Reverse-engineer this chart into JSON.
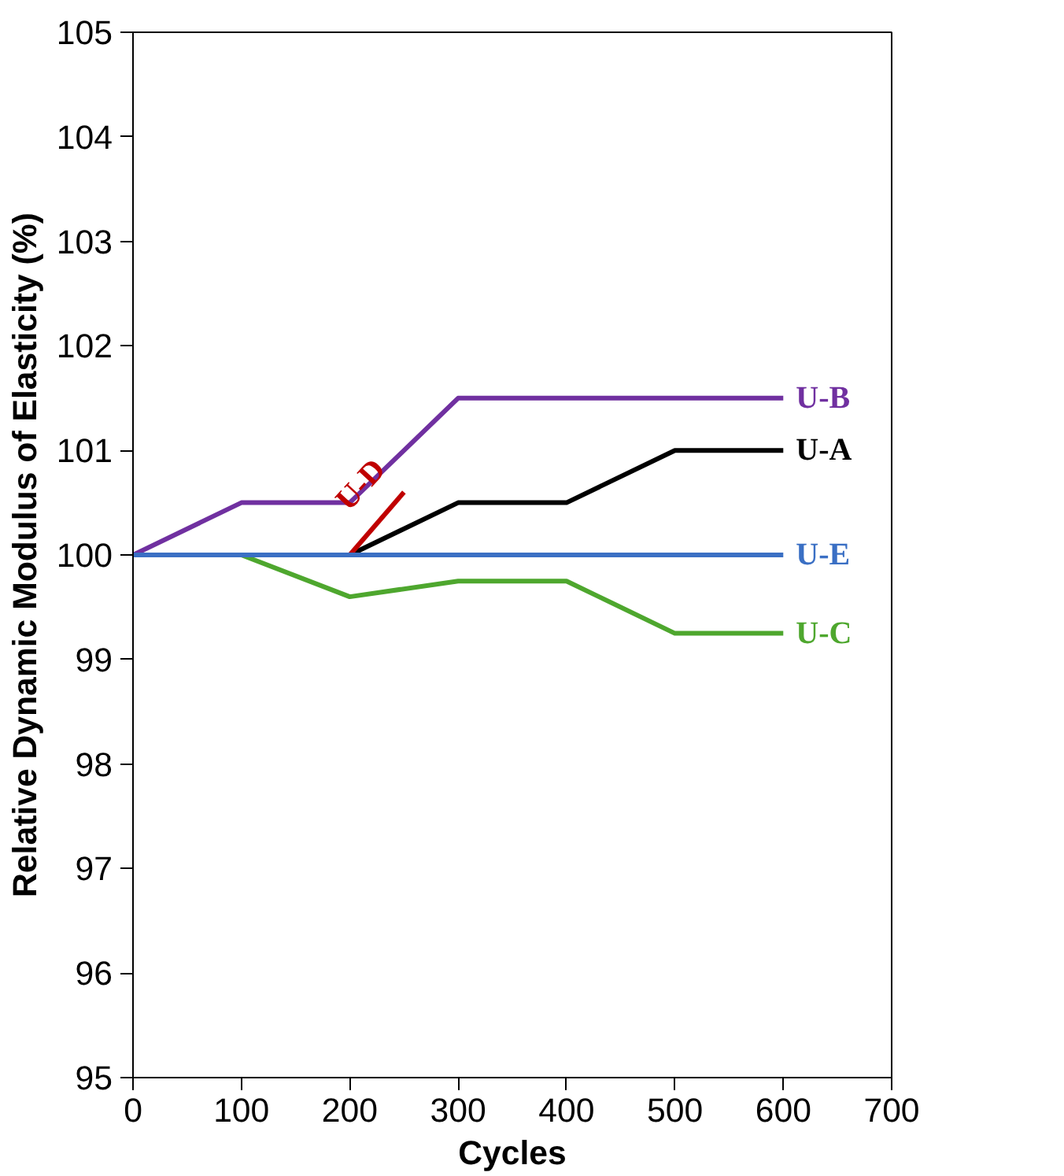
{
  "chart_data": {
    "type": "line",
    "xlabel": "Cycles",
    "ylabel": "Relative Dynamic Modulus of Elasticity (%)",
    "xlim": [
      0,
      700
    ],
    "xticks": [
      0,
      100,
      200,
      300,
      400,
      500,
      600,
      700
    ],
    "ylim": [
      95,
      105
    ],
    "yticks": [
      95,
      96,
      97,
      98,
      99,
      100,
      101,
      102,
      103,
      104,
      105
    ],
    "grid": false,
    "marker": "none",
    "line_style": "solid",
    "series": [
      {
        "name": "U-B",
        "color": "#7030a0",
        "x": [
          0,
          100,
          200,
          300,
          400,
          500,
          600
        ],
        "values": [
          100,
          100.5,
          100.5,
          101.5,
          101.5,
          101.5,
          101.5
        ]
      },
      {
        "name": "U-A",
        "color": "#000000",
        "x": [
          200,
          300,
          400,
          500,
          600
        ],
        "values": [
          100,
          100.5,
          100.5,
          101,
          101
        ]
      },
      {
        "name": "U-D",
        "color": "#c00000",
        "x": [
          200,
          250
        ],
        "values": [
          100,
          100.6
        ]
      },
      {
        "name": "U-C",
        "color": "#4ea72e",
        "x": [
          100,
          200,
          300,
          400,
          500,
          600
        ],
        "values": [
          100,
          99.6,
          99.75,
          99.75,
          99.25,
          99.25
        ]
      },
      {
        "name": "U-E",
        "color": "#3a6fc4",
        "x": [
          0,
          100,
          200,
          300,
          400,
          500,
          600
        ],
        "values": [
          100,
          100,
          100,
          100,
          100,
          100,
          100
        ]
      }
    ]
  }
}
